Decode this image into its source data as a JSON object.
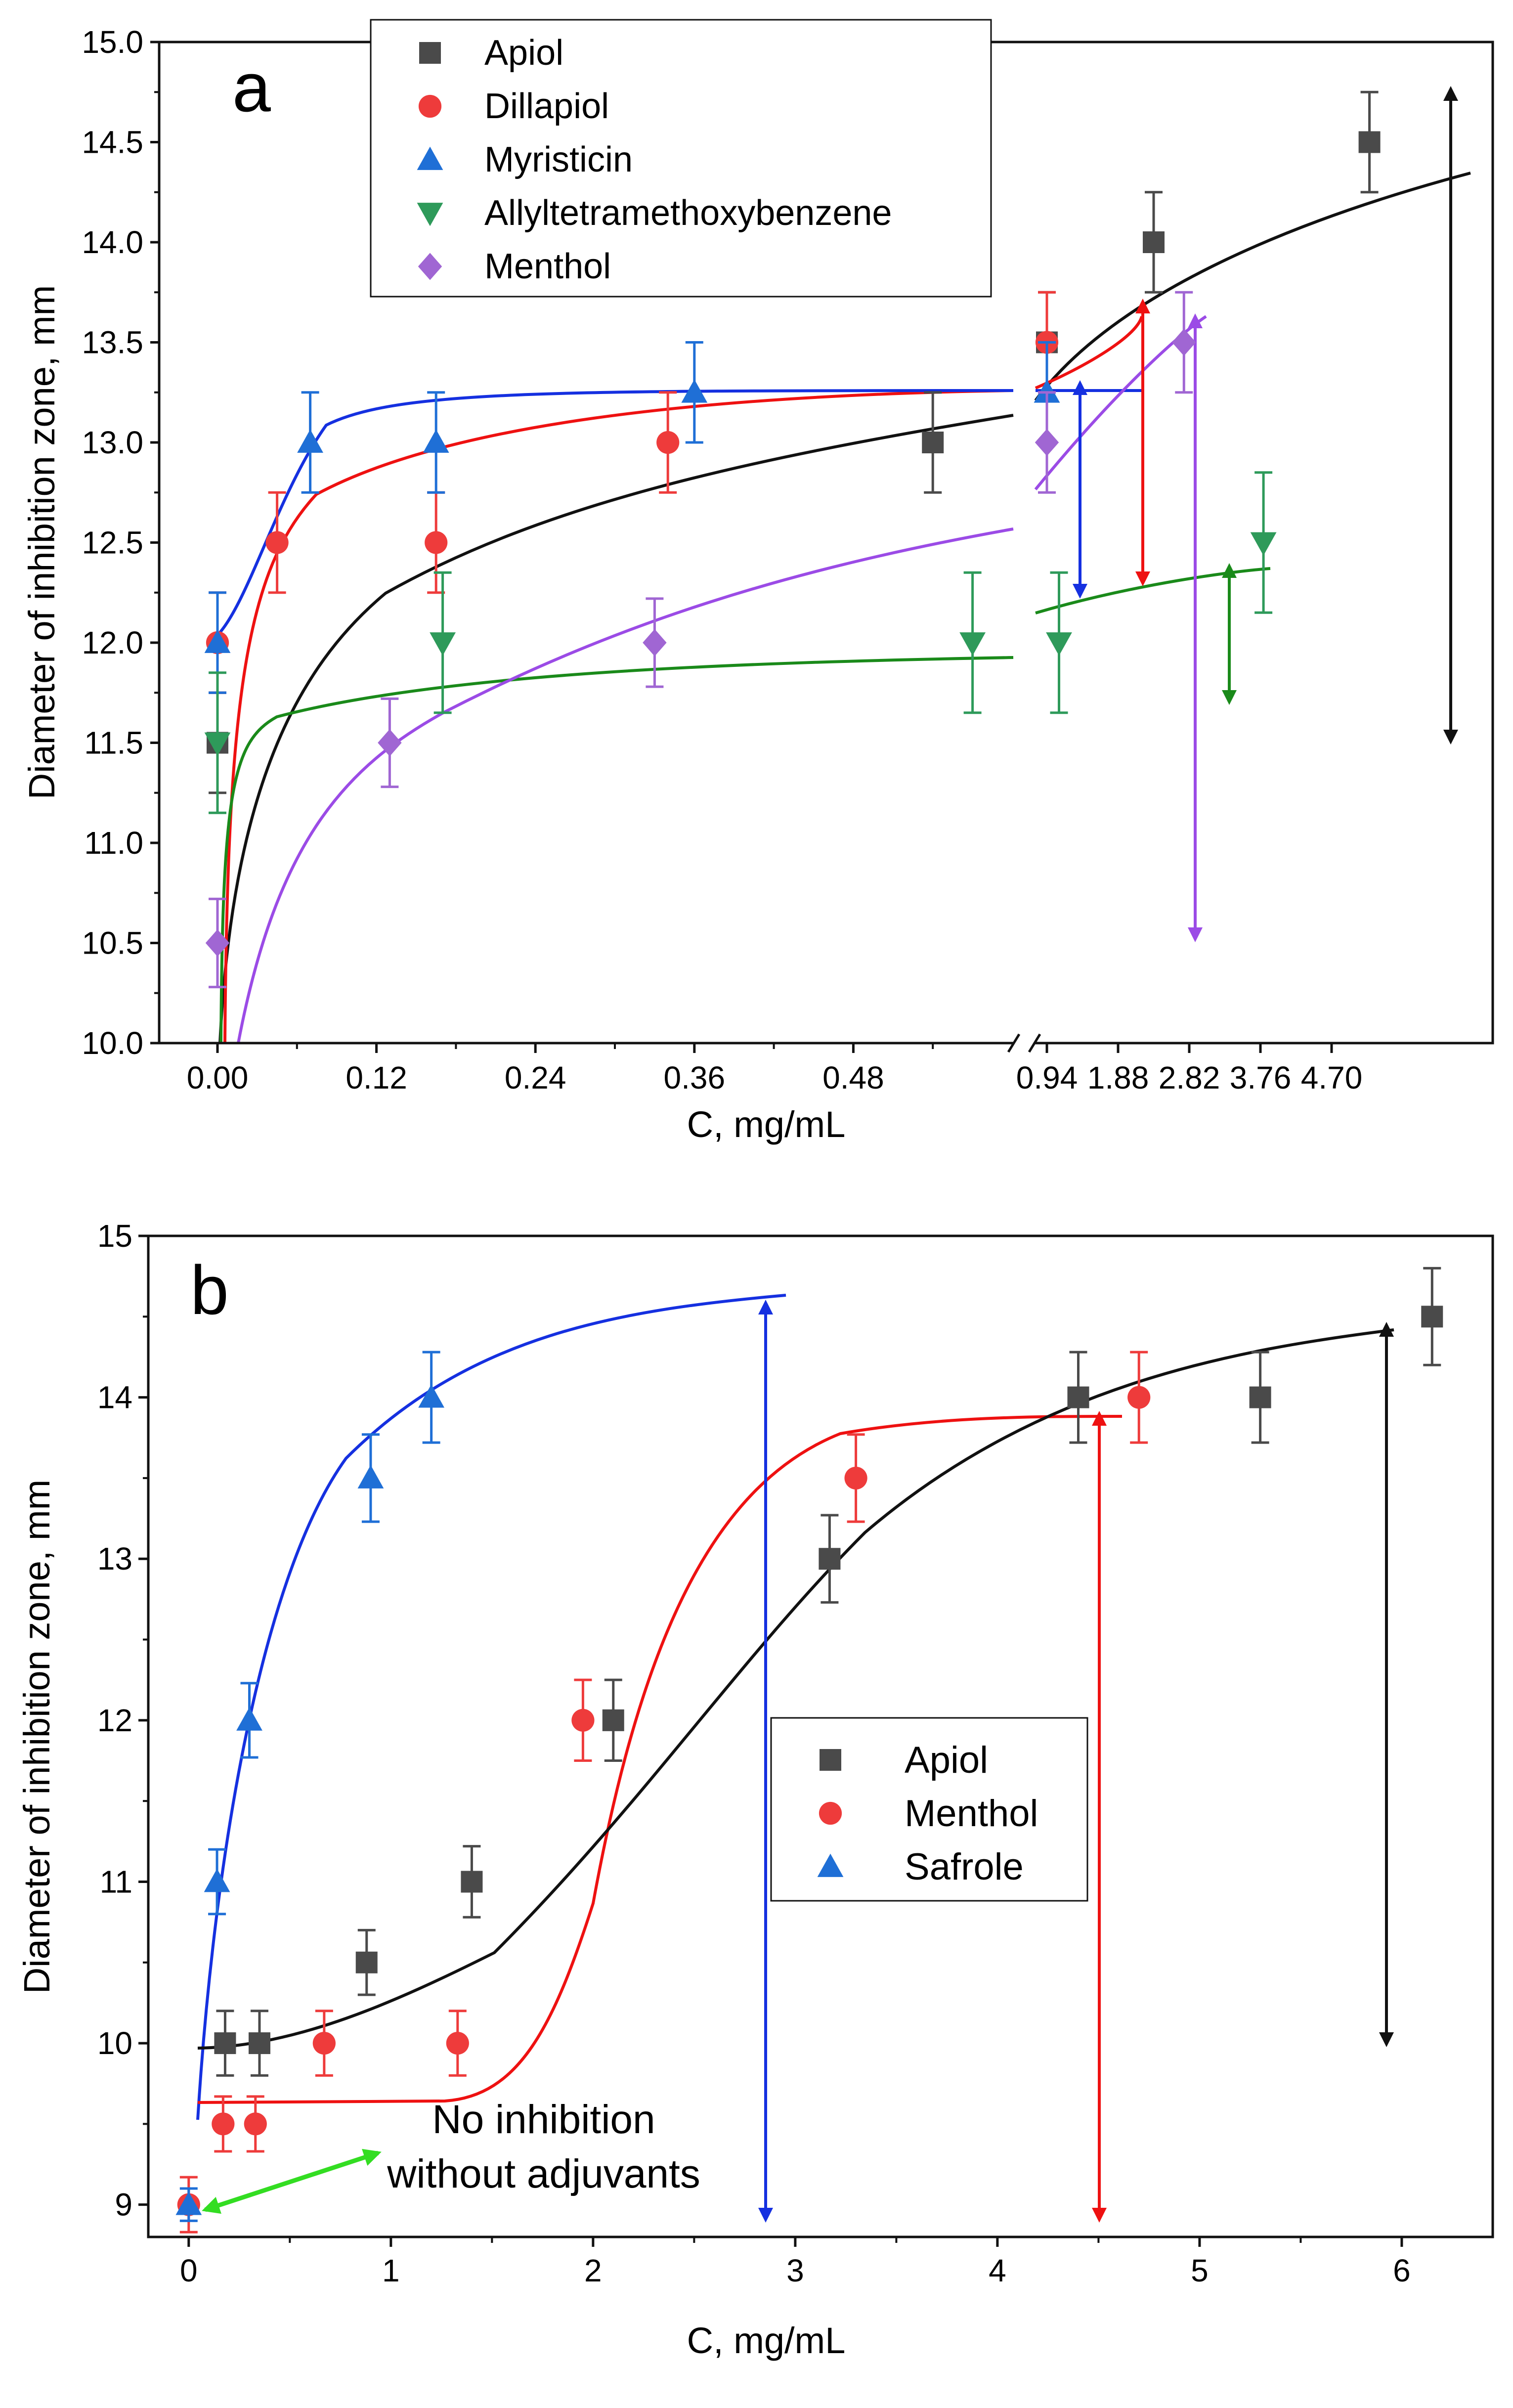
{
  "chart_data": [
    {
      "panel": "a",
      "type": "scatter",
      "title": "",
      "panel_label": "a",
      "xlabel": "C, mg/mL",
      "ylabel": "Diameter of inhibition zone, mm",
      "ylim": [
        10.0,
        15.0
      ],
      "yticks": [
        "10.0",
        "10.5",
        "11.0",
        "11.5",
        "12.0",
        "12.5",
        "13.0",
        "13.5",
        "14.0",
        "14.5",
        "15.0"
      ],
      "axis_break": true,
      "xticks_left": [
        "0.00",
        "0.12",
        "0.24",
        "0.36",
        "0.48"
      ],
      "xticks_right": [
        "0.94",
        "1.88",
        "2.82",
        "3.76",
        "4.70"
      ],
      "left_segment_range": [
        -0.02,
        0.62
      ],
      "right_segment_range": [
        0.85,
        5.2
      ],
      "legend_position": "top-center",
      "series": [
        {
          "name": "Apiol",
          "color": "#4a4a4a",
          "marker": "square",
          "x": [
            0.0,
            0.54,
            0.94,
            2.35,
            5.2
          ],
          "y": [
            11.5,
            13.0,
            13.5,
            14.0,
            14.5
          ],
          "err": [
            0.25,
            0.25,
            0.25,
            0.25,
            0.25
          ]
        },
        {
          "name": "Dillapiol",
          "color": "#ee3b3b",
          "marker": "circle",
          "x": [
            0.0,
            0.045,
            0.165,
            0.34,
            0.94
          ],
          "y": [
            12.0,
            12.5,
            12.5,
            13.0,
            13.5
          ],
          "err": [
            0.25,
            0.25,
            0.25,
            0.25,
            0.25
          ]
        },
        {
          "name": "Myristicin",
          "color": "#1f6fd6",
          "marker": "triangle-up",
          "x": [
            0.0,
            0.07,
            0.165,
            0.36,
            0.94
          ],
          "y": [
            12.0,
            13.0,
            13.0,
            13.25,
            13.25
          ],
          "err": [
            0.25,
            0.25,
            0.25,
            0.25,
            0.25
          ]
        },
        {
          "name": "Allyltetramethoxybenzene",
          "color": "#2e9a5a",
          "marker": "triangle-down",
          "x": [
            0.0,
            0.17,
            0.57,
            1.1,
            3.8
          ],
          "y": [
            11.5,
            12.0,
            12.0,
            12.0,
            12.5
          ],
          "err": [
            0.35,
            0.35,
            0.35,
            0.35,
            0.35
          ]
        },
        {
          "name": "Menthol",
          "color": "#a066d3",
          "marker": "diamond",
          "x": [
            0.0,
            0.13,
            0.33,
            0.94,
            2.75
          ],
          "y": [
            10.5,
            11.5,
            12.0,
            13.0,
            13.5
          ],
          "err": [
            0.22,
            0.22,
            0.22,
            0.25,
            0.25
          ]
        }
      ]
    },
    {
      "panel": "b",
      "type": "scatter",
      "title": "",
      "panel_label": "b",
      "xlabel": "C, mg/mL",
      "ylabel": "Diameter of inhibition zone, mm",
      "xlim": [
        -0.2,
        6.45
      ],
      "ylim": [
        8.8,
        15.0
      ],
      "xticks": [
        0,
        1,
        2,
        3,
        4,
        5,
        6
      ],
      "yticks": [
        9,
        10,
        11,
        12,
        13,
        14,
        15
      ],
      "legend_position": "center-right",
      "annotation": [
        "No inhibition",
        "without adjuvants"
      ],
      "series": [
        {
          "name": "Apiol",
          "color": "#4a4a4a",
          "marker": "square",
          "x": [
            0.18,
            0.35,
            0.88,
            1.4,
            2.1,
            3.17,
            4.4,
            5.3,
            6.15
          ],
          "y": [
            10.0,
            10.0,
            10.5,
            11.0,
            12.0,
            13.0,
            14.0,
            14.0,
            14.5
          ],
          "err": [
            0.2,
            0.2,
            0.2,
            0.22,
            0.25,
            0.27,
            0.28,
            0.28,
            0.3
          ]
        },
        {
          "name": "Menthol",
          "color": "#ee3b3b",
          "marker": "circle",
          "x": [
            0.0,
            0.17,
            0.33,
            0.67,
            1.33,
            1.95,
            3.3,
            4.7
          ],
          "y": [
            9.0,
            9.5,
            9.5,
            10.0,
            10.0,
            12.0,
            13.5,
            14.0
          ],
          "err": [
            0.17,
            0.17,
            0.17,
            0.2,
            0.2,
            0.25,
            0.27,
            0.28
          ]
        },
        {
          "name": "Safrole",
          "color": "#1f6fd6",
          "marker": "triangle-up",
          "x": [
            0.0,
            0.14,
            0.3,
            0.9,
            1.2
          ],
          "y": [
            9.0,
            11.0,
            12.0,
            13.5,
            14.0
          ],
          "err": [
            0.1,
            0.2,
            0.23,
            0.27,
            0.28
          ]
        }
      ]
    }
  ]
}
